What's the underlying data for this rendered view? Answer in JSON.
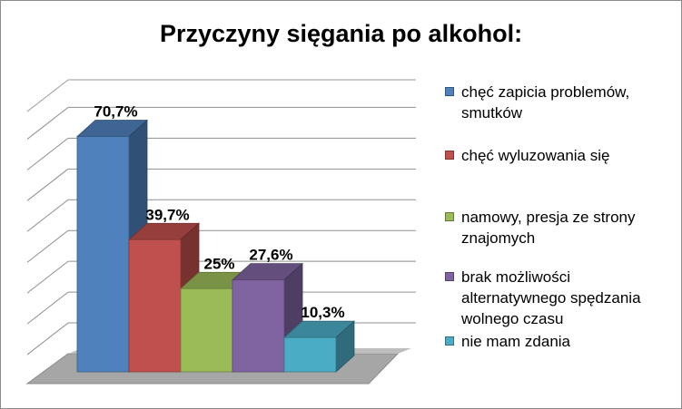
{
  "chart_data": {
    "type": "bar",
    "title": "Przyczyny sięgania po alkohol:",
    "categories": [
      "chęć zapicia problemów, smutków",
      "chęć wyluzowania się",
      "namowy, presja ze strony znajomych",
      "brak możliwości alternatywnego spędzania wolnego czasu",
      "nie mam zdania"
    ],
    "values": [
      70.7,
      39.7,
      25,
      27.6,
      10.3
    ],
    "data_labels": [
      "70,7%",
      "39,7%",
      "25%",
      "27,6%",
      "10,3%"
    ],
    "colors": [
      "#4f81bd",
      "#c0504d",
      "#9bbb59",
      "#8064a2",
      "#4bacc6"
    ],
    "ylim": [
      0,
      80
    ],
    "grid": true,
    "legend_position": "right",
    "style": "3d-column"
  }
}
